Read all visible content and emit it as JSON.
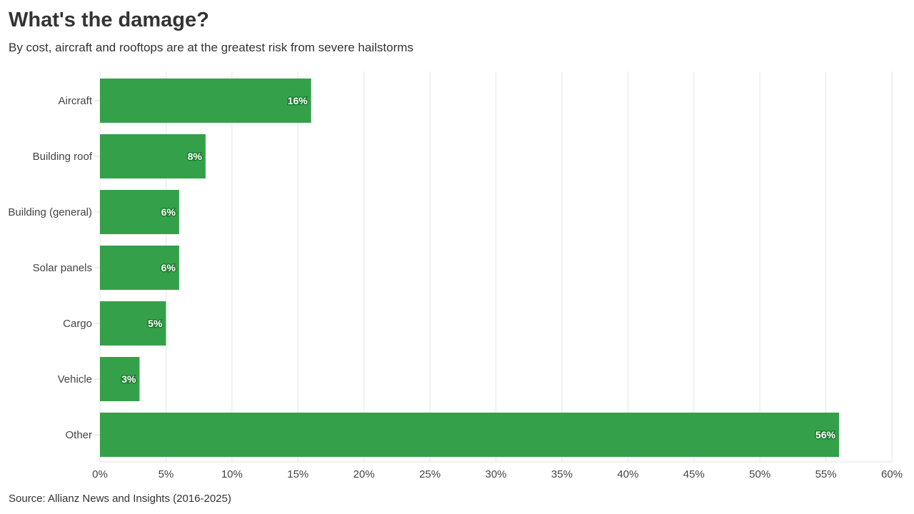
{
  "chart_data": {
    "type": "bar",
    "orientation": "horizontal",
    "title": "What's the damage?",
    "subtitle": "By cost, aircraft and rooftops are at the greatest risk from severe hailstorms",
    "source": "Source: Allianz News and Insights (2016-2025)",
    "categories": [
      "Aircraft",
      "Building roof",
      "Building (general)",
      "Solar panels",
      "Cargo",
      "Vehicle",
      "Other"
    ],
    "values": [
      16,
      8,
      6,
      6,
      5,
      3,
      56
    ],
    "data_labels": [
      "16%",
      "8%",
      "6%",
      "6%",
      "5%",
      "3%",
      "56%"
    ],
    "xlim": [
      0,
      60
    ],
    "xticks": [
      0,
      5,
      10,
      15,
      20,
      25,
      30,
      35,
      40,
      45,
      50,
      55,
      60
    ],
    "xtick_labels": [
      "0%",
      "5%",
      "10%",
      "15%",
      "20%",
      "25%",
      "30%",
      "35%",
      "40%",
      "45%",
      "50%",
      "55%",
      "60%"
    ],
    "grid": "vertical",
    "bar_color": "#35a04a"
  }
}
